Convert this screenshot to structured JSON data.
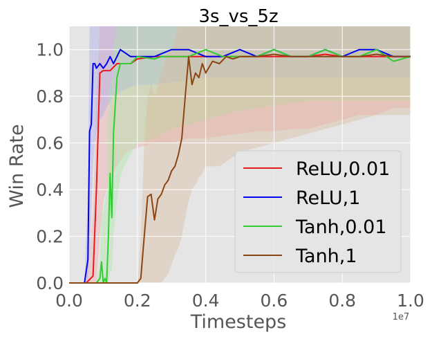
{
  "chart_data": {
    "type": "line",
    "title": "3s_vs_5z",
    "xlabel": "Timesteps",
    "ylabel": "Win Rate",
    "x_offset_label": "1e7",
    "xlim": [
      0.0,
      1.0
    ],
    "ylim": [
      0.0,
      1.1
    ],
    "x_ticks": [
      "0.0",
      "0.2",
      "0.4",
      "0.6",
      "0.8",
      "1.0"
    ],
    "y_ticks": [
      "0.0",
      "0.2",
      "0.4",
      "0.6",
      "0.8",
      "1.0"
    ],
    "grid": true,
    "legend_position": "lower-right",
    "series": [
      {
        "name": "ReLU,0.01",
        "color": "#e41a1c",
        "x": [
          0.0,
          0.05,
          0.07,
          0.08,
          0.09,
          0.1,
          0.12,
          0.14,
          0.16,
          0.18,
          0.2,
          0.25,
          0.3,
          0.35,
          0.4,
          0.45,
          0.5,
          0.55,
          0.6,
          0.65,
          0.7,
          0.75,
          0.8,
          0.85,
          0.9,
          0.95,
          1.0
        ],
        "y": [
          0.0,
          0.0,
          0.03,
          0.4,
          0.9,
          0.91,
          0.91,
          0.94,
          0.94,
          0.94,
          0.96,
          0.97,
          0.97,
          0.97,
          0.97,
          0.97,
          0.97,
          0.97,
          0.97,
          0.97,
          0.97,
          0.98,
          0.97,
          0.97,
          0.97,
          0.97,
          0.97
        ],
        "band_lower": [
          0.0,
          0.0,
          0.0,
          0.0,
          0.2,
          0.35,
          0.45,
          0.5,
          0.55,
          0.57,
          0.58,
          0.6,
          0.6,
          0.62,
          0.62,
          0.63,
          0.64,
          0.65,
          0.65,
          0.66,
          0.66,
          0.68,
          0.7,
          0.72,
          0.72,
          0.75,
          0.75
        ],
        "band_upper": [
          0.0,
          0.0,
          0.3,
          0.8,
          1.1,
          1.1,
          1.1,
          1.1,
          1.1,
          1.1,
          1.1,
          1.1,
          1.1,
          1.1,
          1.1,
          1.1,
          1.1,
          1.1,
          1.1,
          1.1,
          1.1,
          1.1,
          1.1,
          1.1,
          1.1,
          1.1,
          1.1
        ],
        "band_color": "#f4a8a8"
      },
      {
        "name": "ReLU,1",
        "color": "#0000ee",
        "x": [
          0.0,
          0.045,
          0.055,
          0.06,
          0.065,
          0.07,
          0.075,
          0.08,
          0.09,
          0.1,
          0.11,
          0.12,
          0.13,
          0.15,
          0.18,
          0.2,
          0.25,
          0.3,
          0.35,
          0.4,
          0.45,
          0.5,
          0.55,
          0.6,
          0.65,
          0.7,
          0.75,
          0.8,
          0.85,
          0.9,
          0.95,
          1.0
        ],
        "y": [
          0.0,
          0.0,
          0.1,
          0.65,
          0.68,
          0.94,
          0.94,
          0.92,
          0.94,
          0.92,
          0.94,
          0.97,
          0.94,
          1.0,
          0.97,
          0.97,
          0.97,
          1.0,
          1.0,
          0.97,
          0.97,
          1.0,
          0.97,
          1.0,
          0.97,
          0.97,
          1.0,
          0.97,
          1.0,
          1.0,
          0.97,
          0.97
        ],
        "band_lower": [
          0.0,
          0.0,
          0.0,
          0.15,
          0.3,
          0.5,
          0.6,
          0.65,
          0.7,
          0.72,
          0.75,
          0.78,
          0.8,
          0.82,
          0.84,
          0.85,
          0.85,
          0.86,
          0.87,
          0.88,
          0.88,
          0.88,
          0.88,
          0.88,
          0.88,
          0.88,
          0.88,
          0.88,
          0.88,
          0.88,
          0.88,
          0.88
        ],
        "band_upper": [
          0.0,
          0.0,
          0.4,
          1.1,
          1.1,
          1.1,
          1.1,
          1.1,
          1.1,
          1.1,
          1.1,
          1.1,
          1.1,
          1.1,
          1.1,
          1.1,
          1.1,
          1.1,
          1.1,
          1.1,
          1.1,
          1.1,
          1.1,
          1.1,
          1.1,
          1.1,
          1.1,
          1.1,
          1.1,
          1.1,
          1.1,
          1.1
        ],
        "band_color": "#a8a8f0"
      },
      {
        "name": "Tanh,0.01",
        "color": "#33cc33",
        "x": [
          0.0,
          0.08,
          0.09,
          0.095,
          0.1,
          0.105,
          0.11,
          0.115,
          0.12,
          0.125,
          0.13,
          0.14,
          0.15,
          0.16,
          0.18,
          0.2,
          0.25,
          0.27,
          0.3,
          0.35,
          0.4,
          0.45,
          0.5,
          0.55,
          0.6,
          0.65,
          0.7,
          0.75,
          0.8,
          0.85,
          0.9,
          0.95,
          1.0
        ],
        "y": [
          0.0,
          0.0,
          0.02,
          0.09,
          0.0,
          0.02,
          0.0,
          0.2,
          0.47,
          0.28,
          0.64,
          0.88,
          0.94,
          0.94,
          0.94,
          0.97,
          0.96,
          0.97,
          0.97,
          0.97,
          1.0,
          0.97,
          0.97,
          0.97,
          1.0,
          0.97,
          0.97,
          1.0,
          0.97,
          0.97,
          1.0,
          0.95,
          0.97
        ],
        "band_lower": [
          0.0,
          0.0,
          0.0,
          0.0,
          0.0,
          0.0,
          0.0,
          0.0,
          0.05,
          0.05,
          0.2,
          0.35,
          0.45,
          0.5,
          0.55,
          0.6,
          0.62,
          0.64,
          0.66,
          0.68,
          0.7,
          0.72,
          0.74,
          0.75,
          0.76,
          0.77,
          0.78,
          0.78,
          0.78,
          0.78,
          0.78,
          0.78,
          0.78
        ],
        "band_upper": [
          0.0,
          0.0,
          0.1,
          0.3,
          0.3,
          0.35,
          0.4,
          0.7,
          0.9,
          0.8,
          1.0,
          1.1,
          1.1,
          1.1,
          1.1,
          1.1,
          1.1,
          1.1,
          1.1,
          1.1,
          1.1,
          1.1,
          1.1,
          1.1,
          1.1,
          1.1,
          1.1,
          1.1,
          1.1,
          1.1,
          1.1,
          1.1,
          1.1
        ],
        "band_color": "#a8e8a8"
      },
      {
        "name": "Tanh,1",
        "color": "#8b4513",
        "x": [
          0.0,
          0.2,
          0.21,
          0.22,
          0.23,
          0.24,
          0.25,
          0.26,
          0.27,
          0.28,
          0.29,
          0.3,
          0.31,
          0.32,
          0.33,
          0.34,
          0.35,
          0.36,
          0.37,
          0.38,
          0.39,
          0.4,
          0.42,
          0.44,
          0.46,
          0.48,
          0.5,
          0.55,
          0.6,
          0.65,
          0.7,
          0.75,
          0.8,
          0.85,
          0.9,
          0.95,
          1.0
        ],
        "y": [
          0.0,
          0.0,
          0.02,
          0.2,
          0.37,
          0.38,
          0.27,
          0.36,
          0.38,
          0.42,
          0.44,
          0.48,
          0.5,
          0.55,
          0.62,
          0.8,
          0.97,
          0.85,
          0.9,
          0.88,
          0.94,
          0.9,
          0.95,
          0.94,
          0.97,
          0.96,
          0.97,
          0.97,
          0.98,
          0.97,
          0.97,
          0.97,
          0.97,
          0.97,
          0.98,
          0.97,
          0.97
        ],
        "band_lower": [
          0.0,
          0.0,
          0.0,
          0.0,
          0.0,
          0.0,
          0.0,
          0.0,
          0.0,
          0.02,
          0.04,
          0.08,
          0.12,
          0.15,
          0.2,
          0.28,
          0.35,
          0.4,
          0.42,
          0.45,
          0.47,
          0.5,
          0.5,
          0.5,
          0.52,
          0.54,
          0.56,
          0.58,
          0.6,
          0.62,
          0.64,
          0.66,
          0.68,
          0.7,
          0.72,
          0.72,
          0.72
        ],
        "band_upper": [
          0.0,
          0.0,
          0.2,
          0.6,
          0.8,
          0.85,
          0.8,
          0.85,
          0.9,
          0.95,
          1.0,
          1.0,
          1.05,
          1.1,
          1.1,
          1.1,
          1.1,
          1.1,
          1.1,
          1.1,
          1.1,
          1.1,
          1.1,
          1.1,
          1.1,
          1.1,
          1.1,
          1.1,
          1.1,
          1.1,
          1.1,
          1.1,
          1.1,
          1.1,
          1.1,
          1.1,
          1.1
        ],
        "band_color": "#d9b99b"
      }
    ]
  }
}
